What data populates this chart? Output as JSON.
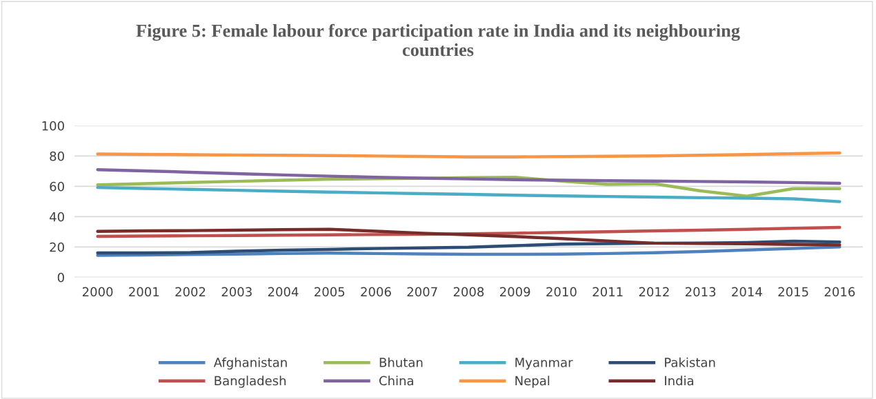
{
  "chart_data": {
    "type": "line",
    "title": "Figure 5: Female labour force participation rate in India and its neighbouring countries",
    "categories": [
      "2000",
      "2001",
      "2002",
      "2003",
      "2004",
      "2005",
      "2006",
      "2007",
      "2008",
      "2009",
      "2010",
      "2011",
      "2012",
      "2013",
      "2014",
      "2015",
      "2016"
    ],
    "series": [
      {
        "name": "Afghanistan",
        "color": "#4f81bd",
        "values": [
          14.5,
          14.7,
          15,
          15.3,
          15.7,
          16,
          15.7,
          15.4,
          15.2,
          15.2,
          15.3,
          15.7,
          16.2,
          17,
          18,
          19,
          20
        ]
      },
      {
        "name": "Bangladesh",
        "color": "#c0504d",
        "values": [
          27,
          27.2,
          27.4,
          27.6,
          27.8,
          28,
          28.2,
          28.4,
          28.7,
          29.1,
          29.6,
          30.1,
          30.6,
          31.1,
          31.7,
          32.3,
          32.9
        ]
      },
      {
        "name": "Bhutan",
        "color": "#9bbb59",
        "values": [
          61,
          61.8,
          62.6,
          63.3,
          64,
          64.7,
          65,
          65.3,
          65.8,
          66,
          63.5,
          61.3,
          61.8,
          57,
          53.5,
          58.5,
          58.5
        ]
      },
      {
        "name": "China",
        "color": "#8064a2",
        "values": [
          71,
          70.2,
          69.3,
          68.4,
          67.5,
          66.7,
          66,
          65.4,
          64.9,
          64.4,
          64,
          63.7,
          63.5,
          63.2,
          62.9,
          62.5,
          62
        ]
      },
      {
        "name": "Myanmar",
        "color": "#4bacc6",
        "values": [
          59.2,
          58.6,
          58,
          57.4,
          56.8,
          56.2,
          55.7,
          55.2,
          54.7,
          54.2,
          53.7,
          53.3,
          52.9,
          52.5,
          52.2,
          51.8,
          49.9
        ]
      },
      {
        "name": "Nepal",
        "color": "#f79646",
        "values": [
          81.3,
          81.1,
          80.9,
          80.7,
          80.5,
          80.3,
          80,
          79.7,
          79.4,
          79.4,
          79.6,
          79.8,
          80.1,
          80.5,
          81,
          81.5,
          82
        ]
      },
      {
        "name": "Pakistan",
        "color": "#2c4d75",
        "values": [
          16.1,
          16.1,
          16.3,
          17.2,
          17.9,
          18.4,
          19,
          19.4,
          19.8,
          20.9,
          21.9,
          22.2,
          22.5,
          22.6,
          22.9,
          23.8,
          23.3
        ]
      },
      {
        "name": "India",
        "color": "#772c2a",
        "values": [
          30.3,
          30.6,
          30.8,
          31.1,
          31.4,
          31.7,
          30.4,
          29.1,
          28,
          26.9,
          25.5,
          24,
          22.5,
          22.3,
          22.1,
          21.7,
          21.3
        ]
      }
    ],
    "ylim": [
      0,
      100
    ],
    "yticks": [
      0,
      20,
      40,
      60,
      80,
      100
    ],
    "grid": "y",
    "legend": "bottom",
    "marker": "none",
    "line_style": "solid"
  }
}
